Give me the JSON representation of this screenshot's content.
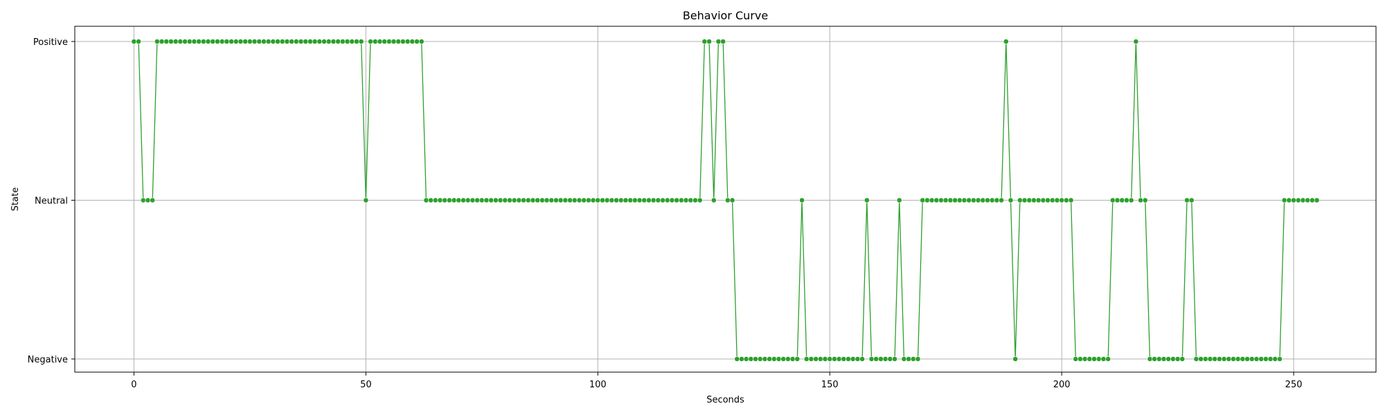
{
  "chart_data": {
    "type": "line",
    "title": "Behavior Curve",
    "xlabel": "Seconds",
    "ylabel": "State",
    "xlim": [
      -12.75,
      267.75
    ],
    "xticks": [
      0,
      50,
      100,
      150,
      200,
      250
    ],
    "y_categories": [
      "Negative",
      "Neutral",
      "Positive"
    ],
    "grid": true,
    "marker": "circle",
    "color": "#2ca02c",
    "series": [
      {
        "x_start": 0,
        "x_step": 1,
        "values": [
          "Positive",
          "Positive",
          "Neutral",
          "Neutral",
          "Neutral",
          "Positive",
          "Positive",
          "Positive",
          "Positive",
          "Positive",
          "Positive",
          "Positive",
          "Positive",
          "Positive",
          "Positive",
          "Positive",
          "Positive",
          "Positive",
          "Positive",
          "Positive",
          "Positive",
          "Positive",
          "Positive",
          "Positive",
          "Positive",
          "Positive",
          "Positive",
          "Positive",
          "Positive",
          "Positive",
          "Positive",
          "Positive",
          "Positive",
          "Positive",
          "Positive",
          "Positive",
          "Positive",
          "Positive",
          "Positive",
          "Positive",
          "Positive",
          "Positive",
          "Positive",
          "Positive",
          "Positive",
          "Positive",
          "Positive",
          "Positive",
          "Positive",
          "Positive",
          "Neutral",
          "Positive",
          "Positive",
          "Positive",
          "Positive",
          "Positive",
          "Positive",
          "Positive",
          "Positive",
          "Positive",
          "Positive",
          "Positive",
          "Positive",
          "Neutral",
          "Neutral",
          "Neutral",
          "Neutral",
          "Neutral",
          "Neutral",
          "Neutral",
          "Neutral",
          "Neutral",
          "Neutral",
          "Neutral",
          "Neutral",
          "Neutral",
          "Neutral",
          "Neutral",
          "Neutral",
          "Neutral",
          "Neutral",
          "Neutral",
          "Neutral",
          "Neutral",
          "Neutral",
          "Neutral",
          "Neutral",
          "Neutral",
          "Neutral",
          "Neutral",
          "Neutral",
          "Neutral",
          "Neutral",
          "Neutral",
          "Neutral",
          "Neutral",
          "Neutral",
          "Neutral",
          "Neutral",
          "Neutral",
          "Neutral",
          "Neutral",
          "Neutral",
          "Neutral",
          "Neutral",
          "Neutral",
          "Neutral",
          "Neutral",
          "Neutral",
          "Neutral",
          "Neutral",
          "Neutral",
          "Neutral",
          "Neutral",
          "Neutral",
          "Neutral",
          "Neutral",
          "Neutral",
          "Neutral",
          "Neutral",
          "Neutral",
          "Neutral",
          "Neutral",
          "Positive",
          "Positive",
          "Neutral",
          "Positive",
          "Positive",
          "Neutral",
          "Neutral",
          "Negative",
          "Negative",
          "Negative",
          "Negative",
          "Negative",
          "Negative",
          "Negative",
          "Negative",
          "Negative",
          "Negative",
          "Negative",
          "Negative",
          "Negative",
          "Negative",
          "Neutral",
          "Negative",
          "Negative",
          "Negative",
          "Negative",
          "Negative",
          "Negative",
          "Negative",
          "Negative",
          "Negative",
          "Negative",
          "Negative",
          "Negative",
          "Negative",
          "Neutral",
          "Negative",
          "Negative",
          "Negative",
          "Negative",
          "Negative",
          "Negative",
          "Neutral",
          "Negative",
          "Negative",
          "Negative",
          "Negative",
          "Neutral",
          "Neutral",
          "Neutral",
          "Neutral",
          "Neutral",
          "Neutral",
          "Neutral",
          "Neutral",
          "Neutral",
          "Neutral",
          "Neutral",
          "Neutral",
          "Neutral",
          "Neutral",
          "Neutral",
          "Neutral",
          "Neutral",
          "Neutral",
          "Positive",
          "Neutral",
          "Negative",
          "Neutral",
          "Neutral",
          "Neutral",
          "Neutral",
          "Neutral",
          "Neutral",
          "Neutral",
          "Neutral",
          "Neutral",
          "Neutral",
          "Neutral",
          "Neutral",
          "Negative",
          "Negative",
          "Negative",
          "Negative",
          "Negative",
          "Negative",
          "Negative",
          "Negative",
          "Neutral",
          "Neutral",
          "Neutral",
          "Neutral",
          "Neutral",
          "Positive",
          "Neutral",
          "Neutral",
          "Negative",
          "Negative",
          "Negative",
          "Negative",
          "Negative",
          "Negative",
          "Negative",
          "Negative",
          "Neutral",
          "Neutral",
          "Negative",
          "Negative",
          "Negative",
          "Negative",
          "Negative",
          "Negative",
          "Negative",
          "Negative",
          "Negative",
          "Negative",
          "Negative",
          "Negative",
          "Negative",
          "Negative",
          "Negative",
          "Negative",
          "Negative",
          "Negative",
          "Negative",
          "Neutral",
          "Neutral",
          "Neutral",
          "Neutral",
          "Neutral",
          "Neutral",
          "Neutral",
          "Neutral"
        ]
      }
    ]
  }
}
